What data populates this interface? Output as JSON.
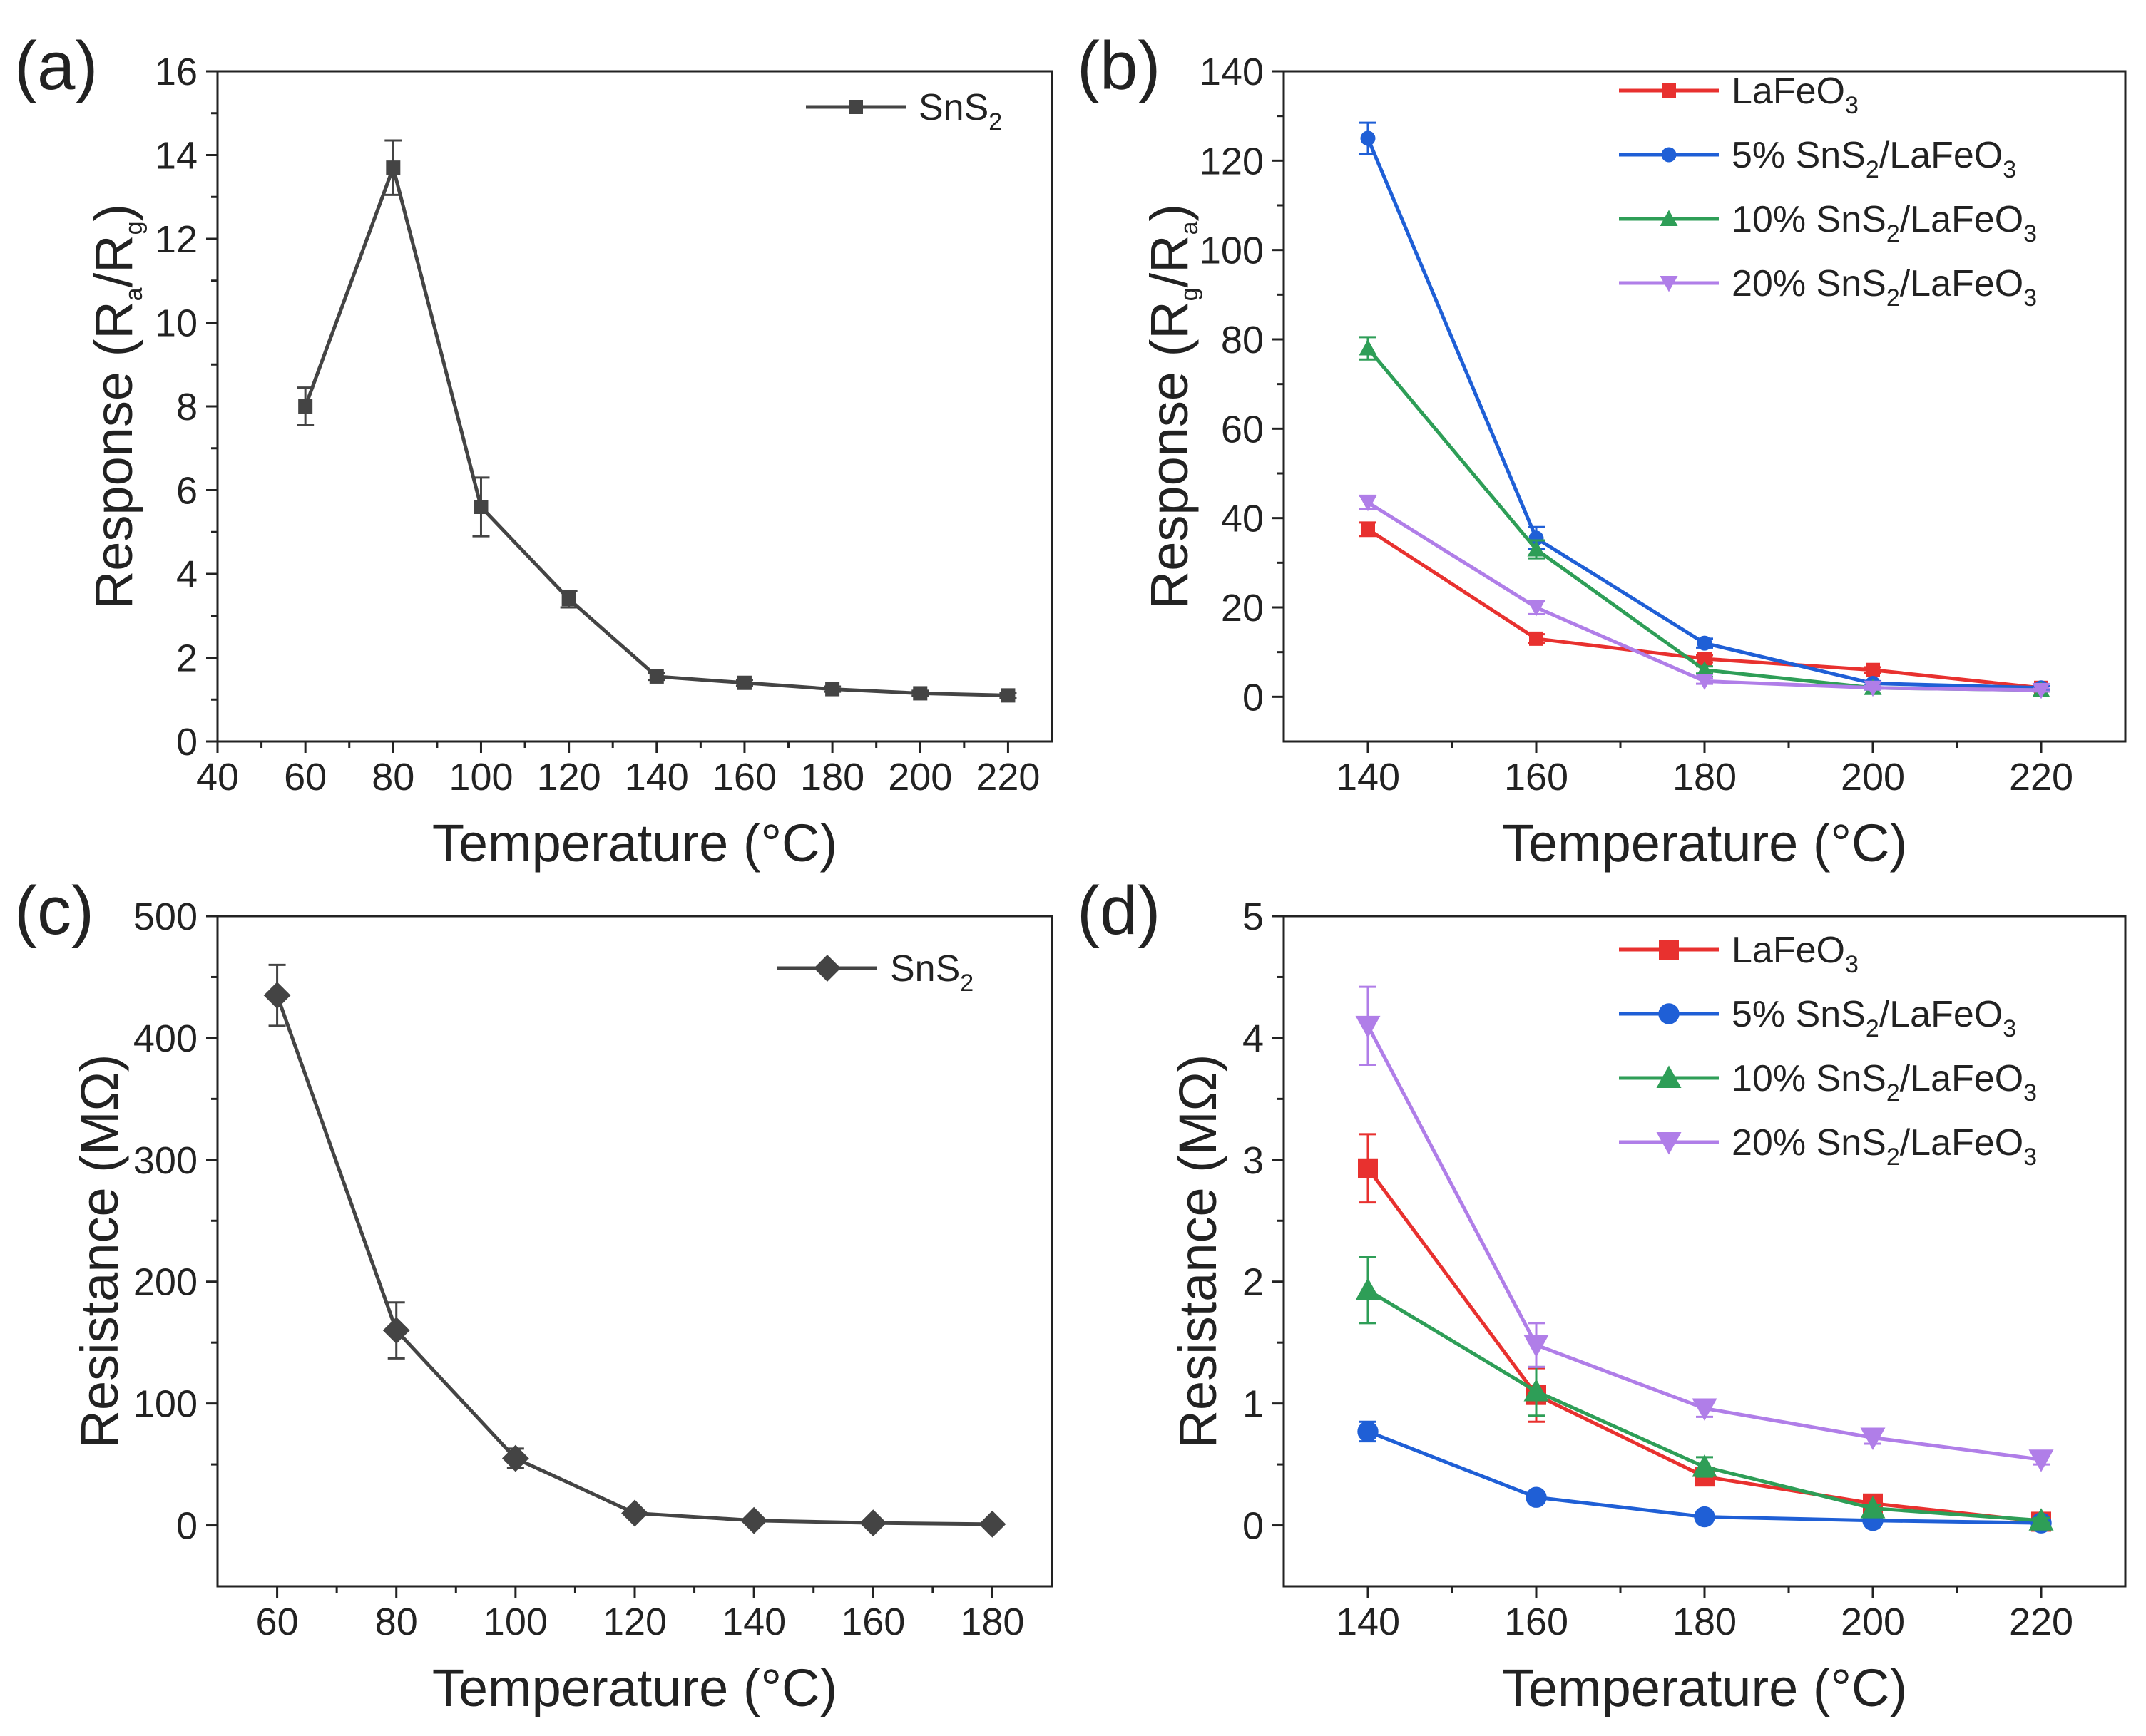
{
  "chart_data": [
    {
      "panel": "a",
      "type": "line",
      "panel_label": "(a)",
      "xlabel": "Temperature (°C)",
      "ylabel": {
        "base": "Response (R",
        "sub1": "a",
        "mid": "/R",
        "sub2": "g",
        "end": ")"
      },
      "xlim": [
        40,
        230
      ],
      "ylim": [
        0,
        16
      ],
      "xticks": [
        "40",
        "60",
        "80",
        "100",
        "120",
        "140",
        "160",
        "180",
        "200",
        "220"
      ],
      "yticks": [
        "0",
        "2",
        "4",
        "6",
        "8",
        "10",
        "12",
        "14",
        "16"
      ],
      "legend_position": "top-right",
      "series": [
        {
          "name": {
            "base": "SnS",
            "sub": "2",
            "end": ""
          },
          "color": "#444444",
          "marker": "square",
          "x": [
            60,
            80,
            100,
            120,
            140,
            160,
            180,
            200,
            220
          ],
          "y": [
            8.0,
            13.7,
            5.6,
            3.4,
            1.55,
            1.4,
            1.25,
            1.15,
            1.1
          ],
          "err": [
            0.45,
            0.65,
            0.7,
            0.2,
            0.08,
            0.07,
            0.06,
            0.06,
            0.06
          ]
        }
      ]
    },
    {
      "panel": "b",
      "type": "line",
      "panel_label": "(b)",
      "xlabel": "Temperature (°C)",
      "ylabel": {
        "base": "Response (R",
        "sub1": "g",
        "mid": "/R",
        "sub2": "a",
        "end": ")"
      },
      "xlim": [
        130,
        230
      ],
      "ylim": [
        -10,
        140
      ],
      "xticks": [
        "140",
        "160",
        "180",
        "200",
        "220"
      ],
      "yticks": [
        "0",
        "20",
        "40",
        "60",
        "80",
        "100",
        "120",
        "140"
      ],
      "legend_position": "top-right",
      "series": [
        {
          "name": {
            "base": "LaFeO",
            "sub": "3",
            "end": ""
          },
          "color": "#e8312f",
          "marker": "square",
          "x": [
            140,
            160,
            180,
            200,
            220
          ],
          "y": [
            37.5,
            13,
            8.5,
            6,
            2
          ],
          "err": [
            1.5,
            1,
            0.8,
            0.6,
            0.4
          ]
        },
        {
          "name": {
            "base": "5% SnS",
            "sub": "2",
            "end": "/LaFeO",
            "sub2": "3"
          },
          "color": "#1f5fd6",
          "marker": "circle",
          "x": [
            140,
            160,
            180,
            200,
            220
          ],
          "y": [
            125,
            35.5,
            12,
            3,
            2
          ],
          "err": [
            3.5,
            2.5,
            1,
            0.5,
            0.4
          ]
        },
        {
          "name": {
            "base": "10% SnS",
            "sub": "2",
            "end": "/LaFeO",
            "sub2": "3"
          },
          "color": "#2e9e57",
          "marker": "triangle-up",
          "x": [
            140,
            160,
            180,
            200,
            220
          ],
          "y": [
            78,
            33,
            6,
            2,
            1.5
          ],
          "err": [
            2.5,
            2,
            0.8,
            0.4,
            0.3
          ]
        },
        {
          "name": {
            "base": "20% SnS",
            "sub": "2",
            "end": "/LaFeO",
            "sub2": "3"
          },
          "color": "#b07ee8",
          "marker": "triangle-down",
          "x": [
            140,
            160,
            180,
            200,
            220
          ],
          "y": [
            43.5,
            20,
            3.5,
            2,
            1.5
          ],
          "err": [
            1.5,
            1.5,
            0.6,
            0.4,
            0.3
          ]
        }
      ]
    },
    {
      "panel": "c",
      "type": "line",
      "panel_label": "(c)",
      "xlabel": "Temperature (°C)",
      "ylabel": {
        "base": "Resistance (MΩ)"
      },
      "xlim": [
        50,
        190
      ],
      "ylim": [
        -50,
        500
      ],
      "xticks": [
        "60",
        "80",
        "100",
        "120",
        "140",
        "160",
        "180"
      ],
      "yticks": [
        "0",
        "100",
        "200",
        "300",
        "400",
        "500"
      ],
      "legend_position": "top-right",
      "series": [
        {
          "name": {
            "base": "SnS",
            "sub": "2",
            "end": ""
          },
          "color": "#444444",
          "marker": "diamond",
          "x": [
            60,
            80,
            100,
            120,
            140,
            160,
            180
          ],
          "y": [
            435,
            160,
            55,
            10,
            4,
            2,
            1
          ],
          "err": [
            25,
            23,
            8,
            2,
            1,
            0.5,
            0.3
          ]
        }
      ]
    },
    {
      "panel": "d",
      "type": "line",
      "panel_label": "(d)",
      "xlabel": "Temperature (°C)",
      "ylabel": {
        "base": "Resistance (MΩ)"
      },
      "xlim": [
        130,
        230
      ],
      "ylim": [
        -0.5,
        5
      ],
      "xticks": [
        "140",
        "160",
        "180",
        "200",
        "220"
      ],
      "yticks": [
        "0",
        "1",
        "2",
        "3",
        "4",
        "5"
      ],
      "legend_position": "top-right",
      "series": [
        {
          "name": {
            "base": "LaFeO",
            "sub": "3",
            "end": ""
          },
          "color": "#e8312f",
          "marker": "square",
          "x": [
            140,
            160,
            180,
            200,
            220
          ],
          "y": [
            2.93,
            1.07,
            0.4,
            0.18,
            0.03
          ],
          "err": [
            0.28,
            0.22,
            0.06,
            0.04,
            0.02
          ]
        },
        {
          "name": {
            "base": "5% SnS",
            "sub": "2",
            "end": "/LaFeO",
            "sub2": "3"
          },
          "color": "#1f5fd6",
          "marker": "circle",
          "x": [
            140,
            160,
            180,
            200,
            220
          ],
          "y": [
            0.77,
            0.23,
            0.07,
            0.04,
            0.02
          ],
          "err": [
            0.08,
            0.03,
            0.02,
            0.01,
            0.01
          ]
        },
        {
          "name": {
            "base": "10% SnS",
            "sub": "2",
            "end": "/LaFeO",
            "sub2": "3"
          },
          "color": "#2e9e57",
          "marker": "triangle-up",
          "x": [
            140,
            160,
            180,
            200,
            220
          ],
          "y": [
            1.93,
            1.1,
            0.48,
            0.14,
            0.04
          ],
          "err": [
            0.27,
            0.2,
            0.08,
            0.03,
            0.02
          ]
        },
        {
          "name": {
            "base": "20% SnS",
            "sub": "2",
            "end": "/LaFeO",
            "sub2": "3"
          },
          "color": "#b07ee8",
          "marker": "triangle-down",
          "x": [
            140,
            160,
            180,
            200,
            220
          ],
          "y": [
            4.1,
            1.48,
            0.96,
            0.72,
            0.54
          ],
          "err": [
            0.32,
            0.18,
            0.07,
            0.05,
            0.04
          ]
        }
      ]
    }
  ]
}
